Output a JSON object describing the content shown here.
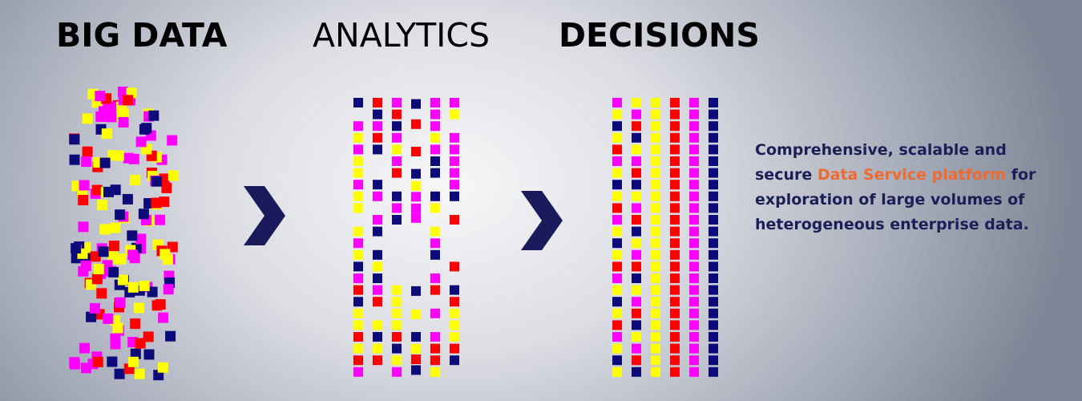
{
  "headings": {
    "big_data": "BIG DATA",
    "analytics": "ANALYTICS",
    "decisions": "DECISIONS"
  },
  "tagline": {
    "line1": "Comprehensive, scalable and",
    "secure": "secure",
    "highlight": "Data Service platform",
    "for": "for",
    "line3": "exploration of large volumes of",
    "line4": "heterogeneous enterprise data."
  },
  "colors": {
    "yellow": "#ffff00",
    "magenta": "#ff00ff",
    "red": "#ff0000",
    "navy": "#0d0a7a",
    "chevron": "#1a1a5c",
    "highlight": "#ef6a2e",
    "text": "#1c1f56"
  },
  "icons": [
    "chevron-right-icon",
    "chevron-right-icon"
  ]
}
